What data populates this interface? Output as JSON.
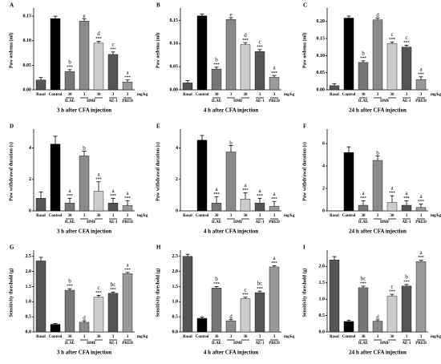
{
  "chart_data": [
    {
      "type": "bar",
      "label": "A",
      "ylabel": "Paw oedema (ml)",
      "xlabel": "3 h after CFA injection",
      "unit": "mg/kg",
      "categories": [
        "Basal",
        "Control",
        "30",
        "3",
        "30",
        "3",
        "3"
      ],
      "group_labels": [
        "ILAE",
        "HMF",
        "AE-1",
        "PRED"
      ],
      "colors": [
        "#555555",
        "#000000",
        "#777777",
        "#8a8a8a",
        "#cccccc",
        "#555555",
        "#999999"
      ],
      "values": [
        0.02,
        0.145,
        0.037,
        0.14,
        0.095,
        0.072,
        0.016
      ],
      "errors": [
        0.005,
        0.005,
        0.004,
        0.005,
        0.004,
        0.005,
        0.004
      ],
      "letters": [
        null,
        null,
        "b",
        "e",
        "d",
        "c",
        "a"
      ],
      "stars": [
        null,
        null,
        "***",
        null,
        "***",
        "***",
        "***"
      ],
      "ylim": [
        0,
        0.16
      ],
      "yticks": [
        {
          "value": 0,
          "label": "0.00"
        },
        0.05,
        {
          "value": 0.1,
          "label": "0.10"
        },
        0.15
      ]
    },
    {
      "type": "bar",
      "label": "B",
      "ylabel": "Paw oedema (ml)",
      "xlabel": "4 h after CFA injection",
      "unit": "mg/kg",
      "categories": [
        "Basal",
        "Control",
        "30",
        "3",
        "30",
        "3",
        "3"
      ],
      "group_labels": [
        "ILAE",
        "HMF",
        "AE-1",
        "PRED"
      ],
      "colors": [
        "#555555",
        "#000000",
        "#777777",
        "#8a8a8a",
        "#cccccc",
        "#555555",
        "#999999"
      ],
      "values": [
        0.015,
        0.16,
        0.045,
        0.152,
        0.098,
        0.083,
        0.027
      ],
      "errors": [
        0.005,
        0.004,
        0.004,
        0.004,
        0.004,
        0.004,
        0.004
      ],
      "letters": [
        null,
        null,
        "b",
        "e",
        "d",
        "c",
        "a"
      ],
      "stars": [
        null,
        null,
        "***",
        null,
        "***",
        "***",
        "***"
      ],
      "ylim": [
        0,
        0.17
      ],
      "yticks": [
        {
          "value": 0,
          "label": "0.00"
        },
        0.05,
        {
          "value": 0.1,
          "label": "0.10"
        },
        0.15
      ]
    },
    {
      "type": "bar",
      "label": "C",
      "ylabel": "Paw oedema (ml)",
      "xlabel": "24 h after CFA injection",
      "unit": "mg/kg",
      "categories": [
        "Basal",
        "Control",
        "30",
        "3",
        "30",
        "3",
        "3"
      ],
      "group_labels": [
        "ILAE",
        "HMF",
        "AE-1",
        "PRED"
      ],
      "colors": [
        "#555555",
        "#000000",
        "#777777",
        "#8a8a8a",
        "#cccccc",
        "#555555",
        "#999999"
      ],
      "values": [
        0.012,
        0.21,
        0.08,
        0.205,
        0.135,
        0.125,
        0.03
      ],
      "errors": [
        0.006,
        0.006,
        0.005,
        0.005,
        0.005,
        0.005,
        0.008
      ],
      "letters": [
        null,
        null,
        "b",
        "d",
        "c",
        "c",
        "a"
      ],
      "stars": [
        null,
        null,
        "***",
        null,
        "***",
        "***",
        "***"
      ],
      "ylim": [
        0,
        0.23
      ],
      "yticks": [
        {
          "value": 0,
          "label": "0.00"
        },
        0.05,
        {
          "value": 0.1,
          "label": "0.10"
        },
        0.15,
        {
          "value": 0.2,
          "label": "0.20"
        }
      ]
    },
    {
      "type": "bar",
      "label": "D",
      "ylabel": "Paw withdrawal duration (s)",
      "xlabel": "3 h after CFA injection",
      "unit": "mg/kg",
      "categories": [
        "Basal",
        "Control",
        "30",
        "3",
        "30",
        "3",
        "3"
      ],
      "group_labels": [
        "ILAE",
        "HMF",
        "AE-1",
        "PRED"
      ],
      "colors": [
        "#555555",
        "#000000",
        "#777777",
        "#8a8a8a",
        "#cccccc",
        "#555555",
        "#999999"
      ],
      "values": [
        0.8,
        4.25,
        0.5,
        3.5,
        1.25,
        0.5,
        0.35
      ],
      "errors": [
        0.4,
        0.5,
        0.3,
        0.3,
        0.6,
        0.3,
        0.3
      ],
      "letters": [
        null,
        null,
        "a",
        "b",
        "a",
        "a",
        "a"
      ],
      "stars": [
        null,
        null,
        "***",
        null,
        "***",
        "***",
        "***"
      ],
      "ylim": [
        0,
        5
      ],
      "yticks": [
        0,
        2,
        4
      ]
    },
    {
      "type": "bar",
      "label": "E",
      "ylabel": "Paw withdrawal duration (s)",
      "xlabel": "4 h after CFA injection",
      "unit": "mg/kg",
      "categories": [
        "Basal",
        "Control",
        "30",
        "3",
        "30",
        "3",
        "3"
      ],
      "group_labels": [
        "ILAE",
        "HMF",
        "AE-1",
        "PRED"
      ],
      "colors": [
        "#555555",
        "#000000",
        "#777777",
        "#8a8a8a",
        "#cccccc",
        "#555555",
        "#999999"
      ],
      "values": [
        0,
        4.5,
        0.5,
        3.75,
        0.75,
        0.5,
        0.3
      ],
      "errors": [
        0,
        0.3,
        0.4,
        0.4,
        0.4,
        0.3,
        0.3
      ],
      "letters": [
        null,
        null,
        "a",
        "b",
        "a",
        "a",
        "a"
      ],
      "stars": [
        null,
        null,
        "***",
        null,
        "***",
        "***",
        "***"
      ],
      "ylim": [
        0,
        5
      ],
      "yticks": [
        0,
        2,
        4
      ]
    },
    {
      "type": "bar",
      "label": "F",
      "ylabel": "Paw withdrawal duration (s)",
      "xlabel": "24 h after CFA injection",
      "unit": "mg/kg",
      "categories": [
        "Basal",
        "Control",
        "30",
        "3",
        "30",
        "3",
        "3"
      ],
      "group_labels": [
        "ILAE",
        "HMF",
        "AE-1",
        "PRED"
      ],
      "colors": [
        "#555555",
        "#000000",
        "#777777",
        "#8a8a8a",
        "#cccccc",
        "#555555",
        "#999999"
      ],
      "values": [
        0,
        5.2,
        0.5,
        4.5,
        0.75,
        0.5,
        0.3
      ],
      "errors": [
        0,
        0.5,
        0.4,
        0.4,
        0.6,
        0.4,
        0.3
      ],
      "letters": [
        null,
        null,
        "a",
        "b",
        "a",
        "a",
        "a"
      ],
      "stars": [
        null,
        null,
        "***",
        null,
        "***",
        "***",
        "***"
      ],
      "ylim": [
        0,
        7
      ],
      "yticks": [
        0,
        2,
        4,
        6
      ]
    },
    {
      "type": "bar",
      "label": "G",
      "ylabel": "Sensitivity threshold (g)",
      "xlabel": "3 h after CFA injection",
      "unit": "mg/kg",
      "categories": [
        "Basal",
        "Control",
        "30",
        "3",
        "30",
        "3",
        "3"
      ],
      "group_labels": [
        "ILAE",
        "HMF",
        "AE-1",
        "PRED"
      ],
      "colors": [
        "#555555",
        "#000000",
        "#777777",
        "#8a8a8a",
        "#cccccc",
        "#555555",
        "#999999"
      ],
      "values": [
        2.35,
        0.25,
        1.38,
        0.32,
        1.15,
        1.28,
        1.93
      ],
      "errors": [
        0.12,
        0.03,
        0.05,
        0.05,
        0.06,
        0.04,
        0.04
      ],
      "letters": [
        null,
        null,
        "b",
        "d",
        "c",
        "bc",
        "a"
      ],
      "stars": [
        null,
        null,
        "***",
        null,
        "***",
        "***",
        "***"
      ],
      "ylim": [
        0,
        2.6
      ],
      "yticks": [
        {
          "value": 0,
          "label": "0.0"
        },
        0.5,
        {
          "value": 1,
          "label": "1.0"
        },
        1.5,
        {
          "value": 2,
          "label": "2.0"
        },
        2.5
      ]
    },
    {
      "type": "bar",
      "label": "H",
      "ylabel": "Sensitivity threshold (g)",
      "xlabel": "4 h after CFA injection",
      "unit": "mg/kg",
      "categories": [
        "Basal",
        "Control",
        "30",
        "3",
        "30",
        "3",
        "3"
      ],
      "group_labels": [
        "ILAE",
        "HMF",
        "AE-1",
        "PRED"
      ],
      "colors": [
        "#555555",
        "#000000",
        "#777777",
        "#8a8a8a",
        "#cccccc",
        "#555555",
        "#999999"
      ],
      "values": [
        2.5,
        0.45,
        1.45,
        0.37,
        1.1,
        1.3,
        2.15
      ],
      "errors": [
        0.07,
        0.04,
        0.05,
        0.05,
        0.05,
        0.05,
        0.04
      ],
      "letters": [
        null,
        null,
        "b",
        "d",
        "c",
        "bc",
        "a"
      ],
      "stars": [
        null,
        null,
        "***",
        null,
        "***",
        "***",
        "***"
      ],
      "ylim": [
        0,
        2.6
      ],
      "yticks": [
        {
          "value": 0,
          "label": "0.0"
        },
        0.5,
        {
          "value": 1,
          "label": "1.0"
        },
        1.5,
        {
          "value": 2,
          "label": "2.0"
        },
        2.5
      ]
    },
    {
      "type": "bar",
      "label": "I",
      "ylabel": "Sensitivity threshold (g)",
      "xlabel": "24 h after CFA injection",
      "unit": "mg/kg",
      "categories": [
        "Basal",
        "Control",
        "30",
        "3",
        "30",
        "3",
        "3"
      ],
      "group_labels": [
        "ILAE",
        "HMF",
        "AE-1",
        "PRED"
      ],
      "colors": [
        "#555555",
        "#000000",
        "#777777",
        "#8a8a8a",
        "#cccccc",
        "#555555",
        "#999999"
      ],
      "values": [
        2.2,
        0.32,
        1.35,
        0.33,
        1.1,
        1.4,
        2.15
      ],
      "errors": [
        0.1,
        0.04,
        0.05,
        0.04,
        0.05,
        0.05,
        0.04
      ],
      "letters": [
        null,
        null,
        "bc",
        "d",
        "c",
        "b",
        "a"
      ],
      "stars": [
        null,
        null,
        "***",
        null,
        "***",
        "***",
        "***"
      ],
      "ylim": [
        0,
        2.4
      ],
      "yticks": [
        {
          "value": 0,
          "label": "0.0"
        },
        0.5,
        {
          "value": 1,
          "label": "1.0"
        },
        1.5,
        {
          "value": 2,
          "label": "2.0"
        }
      ]
    }
  ]
}
